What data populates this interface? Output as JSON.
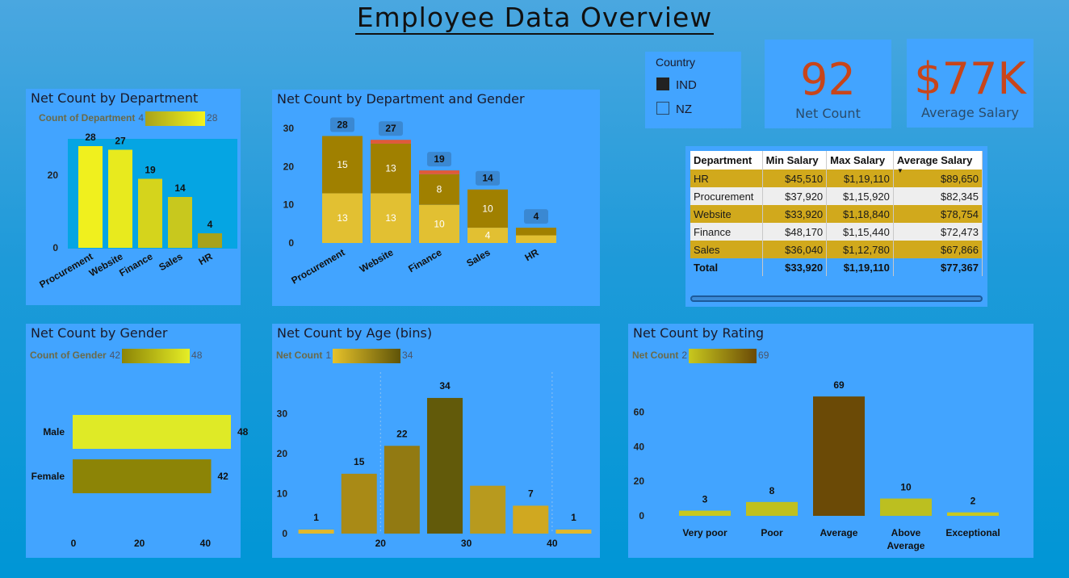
{
  "page": {
    "title": "Employee Data Overview"
  },
  "slicer": {
    "title": "Country",
    "options": [
      {
        "label": "IND",
        "checked": true
      },
      {
        "label": "NZ",
        "checked": false
      }
    ]
  },
  "cards": [
    {
      "value": "92",
      "label": "Net Count"
    },
    {
      "value": "$77K",
      "label": "Average Salary"
    }
  ],
  "salary_table": {
    "headers": [
      "Department",
      "Min Salary",
      "Max Salary",
      "Average Salary"
    ],
    "rows": [
      [
        "HR",
        "$45,510",
        "$1,19,110",
        "$89,650"
      ],
      [
        "Procurement",
        "$37,920",
        "$1,15,920",
        "$82,345"
      ],
      [
        "Website",
        "$33,920",
        "$1,18,840",
        "$78,754"
      ],
      [
        "Finance",
        "$48,170",
        "$1,15,440",
        "$72,473"
      ],
      [
        "Sales",
        "$36,040",
        "$1,12,780",
        "$67,866"
      ]
    ],
    "total": [
      "Total",
      "$33,920",
      "$1,19,110",
      "$77,367"
    ]
  },
  "legends": {
    "dept": {
      "label": "Count of Department",
      "min": "4",
      "max": "28"
    },
    "gender": {
      "label": "Count of Gender",
      "min": "42",
      "max": "48"
    },
    "age": {
      "label": "Net Count",
      "min": "1",
      "max": "34"
    },
    "rating": {
      "label": "Net Count",
      "min": "2",
      "max": "69"
    }
  },
  "chart_data": [
    {
      "id": "dept",
      "type": "bar",
      "title": "Net Count by Department",
      "categories": [
        "Procurement",
        "Website",
        "Finance",
        "Sales",
        "HR"
      ],
      "values": [
        28,
        27,
        19,
        14,
        4
      ],
      "ylim": [
        0,
        30
      ],
      "yticks": [
        0,
        20
      ],
      "colors": [
        "#f0f01e",
        "#e8ea1e",
        "#d5d41c",
        "#c8c81e",
        "#a8a21a"
      ]
    },
    {
      "id": "deptgender",
      "type": "bar",
      "title": "Net Count by Department and Gender",
      "categories": [
        "Procurement",
        "Website",
        "Finance",
        "Sales",
        "HR"
      ],
      "series": [
        {
          "values": [
            13,
            13,
            10,
            4,
            2
          ],
          "color": "#e2c032"
        },
        {
          "values": [
            15,
            13,
            8,
            10,
            2
          ],
          "color": "#a08000"
        },
        {
          "values": [
            0,
            1,
            1,
            0,
            0
          ],
          "color": "#e05a3a"
        }
      ],
      "totals": [
        28,
        27,
        19,
        14,
        4
      ],
      "ylim": [
        0,
        30
      ],
      "yticks": [
        0,
        10,
        20,
        30
      ]
    },
    {
      "id": "gender",
      "type": "bar",
      "orientation": "horizontal",
      "title": "Net Count by Gender",
      "categories": [
        "Male",
        "Female"
      ],
      "values": [
        48,
        42
      ],
      "xlim": [
        0,
        48
      ],
      "xticks": [
        0,
        20,
        40
      ],
      "colors": [
        "#dfea26",
        "#8c8406"
      ]
    },
    {
      "id": "age",
      "type": "bar",
      "title": "Net Count by Age (bins)",
      "x": [
        12.5,
        17.5,
        22.5,
        27.5,
        32.5,
        37.5,
        42.5
      ],
      "values": [
        1,
        15,
        22,
        34,
        12,
        7,
        1
      ],
      "labels": [
        "1",
        "15",
        "22",
        "34",
        "",
        "7",
        "1"
      ],
      "xlim": [
        10,
        45
      ],
      "xticks": [
        20,
        30,
        40
      ],
      "ylim": [
        0,
        35
      ],
      "yticks": [
        0,
        10,
        20,
        30
      ],
      "colors": [
        "#e2b82a",
        "#a98a16",
        "#927a12",
        "#625a0a",
        "#b89a1e",
        "#d0a820",
        "#e2b82a"
      ]
    },
    {
      "id": "rating",
      "type": "bar",
      "title": "Net Count by Rating",
      "categories": [
        "Very poor",
        "Poor",
        "Average",
        "Above Average",
        "Exceptional"
      ],
      "values": [
        3,
        8,
        69,
        10,
        2
      ],
      "ylim": [
        0,
        70
      ],
      "yticks": [
        0,
        20,
        40,
        60
      ],
      "colors": [
        "#c8c81e",
        "#c0c01e",
        "#6b4a06",
        "#bcbf20",
        "#c8c81e"
      ]
    }
  ]
}
